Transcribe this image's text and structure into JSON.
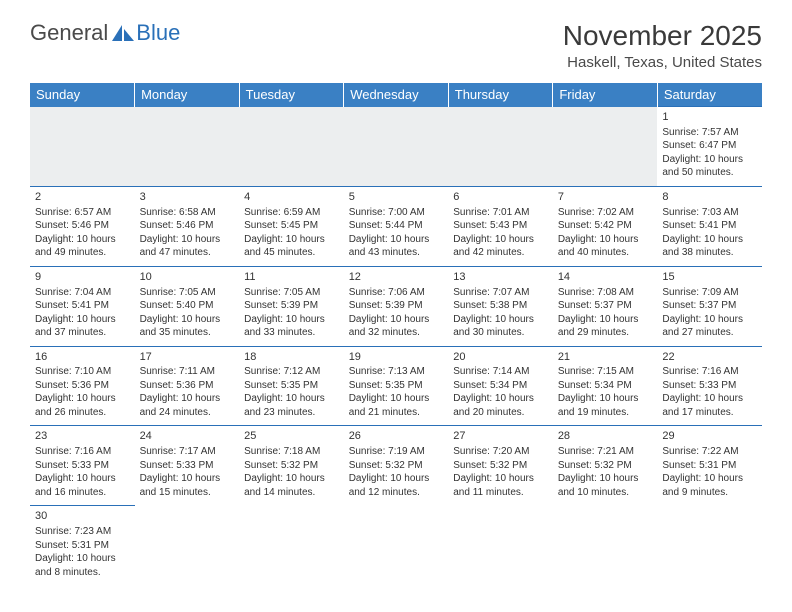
{
  "logo": {
    "part1": "General",
    "part2": "Blue"
  },
  "title": "November 2025",
  "location": "Haskell, Texas, United States",
  "weekdays": [
    "Sunday",
    "Monday",
    "Tuesday",
    "Wednesday",
    "Thursday",
    "Friday",
    "Saturday"
  ],
  "colors": {
    "header_bg": "#3a80c4",
    "header_text": "#ffffff",
    "border": "#2a70b8",
    "blank_bg": "#eceeef",
    "text": "#333333",
    "logo_accent": "#2a70b8"
  },
  "weeks": [
    [
      null,
      null,
      null,
      null,
      null,
      null,
      {
        "n": "1",
        "sr": "Sunrise: 7:57 AM",
        "ss": "Sunset: 6:47 PM",
        "d1": "Daylight: 10 hours",
        "d2": "and 50 minutes."
      }
    ],
    [
      {
        "n": "2",
        "sr": "Sunrise: 6:57 AM",
        "ss": "Sunset: 5:46 PM",
        "d1": "Daylight: 10 hours",
        "d2": "and 49 minutes."
      },
      {
        "n": "3",
        "sr": "Sunrise: 6:58 AM",
        "ss": "Sunset: 5:46 PM",
        "d1": "Daylight: 10 hours",
        "d2": "and 47 minutes."
      },
      {
        "n": "4",
        "sr": "Sunrise: 6:59 AM",
        "ss": "Sunset: 5:45 PM",
        "d1": "Daylight: 10 hours",
        "d2": "and 45 minutes."
      },
      {
        "n": "5",
        "sr": "Sunrise: 7:00 AM",
        "ss": "Sunset: 5:44 PM",
        "d1": "Daylight: 10 hours",
        "d2": "and 43 minutes."
      },
      {
        "n": "6",
        "sr": "Sunrise: 7:01 AM",
        "ss": "Sunset: 5:43 PM",
        "d1": "Daylight: 10 hours",
        "d2": "and 42 minutes."
      },
      {
        "n": "7",
        "sr": "Sunrise: 7:02 AM",
        "ss": "Sunset: 5:42 PM",
        "d1": "Daylight: 10 hours",
        "d2": "and 40 minutes."
      },
      {
        "n": "8",
        "sr": "Sunrise: 7:03 AM",
        "ss": "Sunset: 5:41 PM",
        "d1": "Daylight: 10 hours",
        "d2": "and 38 minutes."
      }
    ],
    [
      {
        "n": "9",
        "sr": "Sunrise: 7:04 AM",
        "ss": "Sunset: 5:41 PM",
        "d1": "Daylight: 10 hours",
        "d2": "and 37 minutes."
      },
      {
        "n": "10",
        "sr": "Sunrise: 7:05 AM",
        "ss": "Sunset: 5:40 PM",
        "d1": "Daylight: 10 hours",
        "d2": "and 35 minutes."
      },
      {
        "n": "11",
        "sr": "Sunrise: 7:05 AM",
        "ss": "Sunset: 5:39 PM",
        "d1": "Daylight: 10 hours",
        "d2": "and 33 minutes."
      },
      {
        "n": "12",
        "sr": "Sunrise: 7:06 AM",
        "ss": "Sunset: 5:39 PM",
        "d1": "Daylight: 10 hours",
        "d2": "and 32 minutes."
      },
      {
        "n": "13",
        "sr": "Sunrise: 7:07 AM",
        "ss": "Sunset: 5:38 PM",
        "d1": "Daylight: 10 hours",
        "d2": "and 30 minutes."
      },
      {
        "n": "14",
        "sr": "Sunrise: 7:08 AM",
        "ss": "Sunset: 5:37 PM",
        "d1": "Daylight: 10 hours",
        "d2": "and 29 minutes."
      },
      {
        "n": "15",
        "sr": "Sunrise: 7:09 AM",
        "ss": "Sunset: 5:37 PM",
        "d1": "Daylight: 10 hours",
        "d2": "and 27 minutes."
      }
    ],
    [
      {
        "n": "16",
        "sr": "Sunrise: 7:10 AM",
        "ss": "Sunset: 5:36 PM",
        "d1": "Daylight: 10 hours",
        "d2": "and 26 minutes."
      },
      {
        "n": "17",
        "sr": "Sunrise: 7:11 AM",
        "ss": "Sunset: 5:36 PM",
        "d1": "Daylight: 10 hours",
        "d2": "and 24 minutes."
      },
      {
        "n": "18",
        "sr": "Sunrise: 7:12 AM",
        "ss": "Sunset: 5:35 PM",
        "d1": "Daylight: 10 hours",
        "d2": "and 23 minutes."
      },
      {
        "n": "19",
        "sr": "Sunrise: 7:13 AM",
        "ss": "Sunset: 5:35 PM",
        "d1": "Daylight: 10 hours",
        "d2": "and 21 minutes."
      },
      {
        "n": "20",
        "sr": "Sunrise: 7:14 AM",
        "ss": "Sunset: 5:34 PM",
        "d1": "Daylight: 10 hours",
        "d2": "and 20 minutes."
      },
      {
        "n": "21",
        "sr": "Sunrise: 7:15 AM",
        "ss": "Sunset: 5:34 PM",
        "d1": "Daylight: 10 hours",
        "d2": "and 19 minutes."
      },
      {
        "n": "22",
        "sr": "Sunrise: 7:16 AM",
        "ss": "Sunset: 5:33 PM",
        "d1": "Daylight: 10 hours",
        "d2": "and 17 minutes."
      }
    ],
    [
      {
        "n": "23",
        "sr": "Sunrise: 7:16 AM",
        "ss": "Sunset: 5:33 PM",
        "d1": "Daylight: 10 hours",
        "d2": "and 16 minutes."
      },
      {
        "n": "24",
        "sr": "Sunrise: 7:17 AM",
        "ss": "Sunset: 5:33 PM",
        "d1": "Daylight: 10 hours",
        "d2": "and 15 minutes."
      },
      {
        "n": "25",
        "sr": "Sunrise: 7:18 AM",
        "ss": "Sunset: 5:32 PM",
        "d1": "Daylight: 10 hours",
        "d2": "and 14 minutes."
      },
      {
        "n": "26",
        "sr": "Sunrise: 7:19 AM",
        "ss": "Sunset: 5:32 PM",
        "d1": "Daylight: 10 hours",
        "d2": "and 12 minutes."
      },
      {
        "n": "27",
        "sr": "Sunrise: 7:20 AM",
        "ss": "Sunset: 5:32 PM",
        "d1": "Daylight: 10 hours",
        "d2": "and 11 minutes."
      },
      {
        "n": "28",
        "sr": "Sunrise: 7:21 AM",
        "ss": "Sunset: 5:32 PM",
        "d1": "Daylight: 10 hours",
        "d2": "and 10 minutes."
      },
      {
        "n": "29",
        "sr": "Sunrise: 7:22 AM",
        "ss": "Sunset: 5:31 PM",
        "d1": "Daylight: 10 hours",
        "d2": "and 9 minutes."
      }
    ],
    [
      {
        "n": "30",
        "sr": "Sunrise: 7:23 AM",
        "ss": "Sunset: 5:31 PM",
        "d1": "Daylight: 10 hours",
        "d2": "and 8 minutes."
      },
      null,
      null,
      null,
      null,
      null,
      null
    ]
  ]
}
